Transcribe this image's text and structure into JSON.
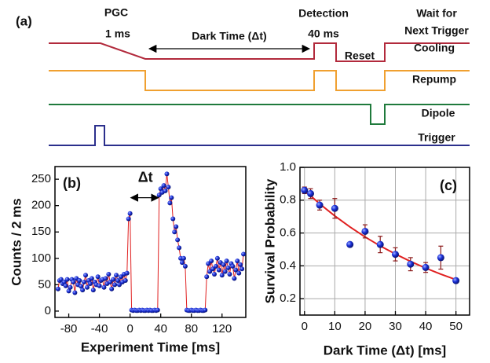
{
  "diagram": {
    "panel_label": "(a)",
    "pgc": "PGC",
    "pgc_time": "1 ms",
    "dark_time": "Dark Time (Δt)",
    "detection": "Detection",
    "detection_time": "40 ms",
    "reset": "Reset",
    "wait_1": "Wait for",
    "wait_2": "Next Trigger",
    "channels": [
      {
        "name": "Cooling",
        "color": "#b22a3c"
      },
      {
        "name": "Repump",
        "color": "#f0a030"
      },
      {
        "name": "Dipole",
        "color": "#1f7a3c"
      },
      {
        "name": "Trigger",
        "color": "#2b2f8c"
      }
    ]
  },
  "chart_data": [
    {
      "type": "line",
      "panel_label": "(b)",
      "annotation": "Δt",
      "x_label": "Experiment Time [ms]",
      "y_label": "Counts / 2 ms",
      "marker_color": "#1a2fd8",
      "line_color": "#e02020",
      "x": [
        -94,
        -92,
        -90,
        -88,
        -86,
        -84,
        -82,
        -80,
        -78,
        -76,
        -74,
        -72,
        -70,
        -68,
        -66,
        -64,
        -62,
        -60,
        -58,
        -56,
        -54,
        -52,
        -50,
        -48,
        -46,
        -44,
        -42,
        -40,
        -38,
        -36,
        -34,
        -32,
        -30,
        -28,
        -26,
        -24,
        -22,
        -20,
        -18,
        -16,
        -14,
        -12,
        -10,
        -8,
        -6,
        -4,
        -2,
        0,
        2,
        4,
        6,
        8,
        10,
        12,
        14,
        16,
        18,
        20,
        22,
        24,
        26,
        28,
        30,
        32,
        34,
        36,
        38,
        40,
        42,
        44,
        46,
        48,
        50,
        52,
        54,
        56,
        58,
        60,
        62,
        64,
        66,
        68,
        70,
        72,
        74,
        76,
        78,
        80,
        82,
        84,
        86,
        88,
        90,
        92,
        94,
        96,
        98,
        100,
        102,
        104,
        106,
        108,
        110,
        112,
        114,
        116,
        118,
        120,
        122,
        124,
        126,
        128,
        130,
        132,
        134,
        136,
        138,
        140,
        142,
        144,
        146,
        148
      ],
      "values": [
        42,
        58,
        60,
        52,
        55,
        48,
        60,
        38,
        45,
        60,
        55,
        35,
        62,
        50,
        58,
        47,
        40,
        55,
        68,
        45,
        58,
        52,
        62,
        40,
        55,
        50,
        65,
        48,
        58,
        60,
        45,
        62,
        52,
        70,
        55,
        42,
        60,
        50,
        68,
        58,
        50,
        65,
        55,
        70,
        58,
        72,
        175,
        185,
        2,
        1,
        2,
        1,
        1,
        2,
        1,
        2,
        1,
        1,
        2,
        1,
        2,
        1,
        1,
        2,
        1,
        2,
        220,
        232,
        225,
        238,
        228,
        260,
        235,
        205,
        215,
        175,
        150,
        160,
        135,
        120,
        100,
        92,
        100,
        85,
        2,
        1,
        1,
        2,
        1,
        1,
        2,
        1,
        1,
        2,
        1,
        1,
        2,
        65,
        90,
        75,
        95,
        80,
        70,
        85,
        100,
        78,
        92,
        68,
        88,
        75,
        95,
        82,
        70,
        90,
        85,
        62,
        78,
        95,
        72,
        88,
        80,
        108
      ],
      "xlim": [
        -98,
        151
      ],
      "xticks": [
        -80,
        -40,
        0,
        40,
        80,
        120
      ],
      "ylim": [
        -12,
        274
      ],
      "yticks": [
        0,
        50,
        100,
        150,
        200,
        250
      ],
      "grid": false
    },
    {
      "type": "scatter",
      "panel_label": "(c)",
      "x_label": "Dark Time (Δt) [ms]",
      "y_label": "Survival Probability",
      "marker_color": "#1a2fd8",
      "error_color": "#8b1a1a",
      "fit_color": "#e02020",
      "x": [
        0,
        2,
        5,
        10,
        15,
        20,
        25,
        30,
        35,
        40,
        45,
        50
      ],
      "values": [
        0.86,
        0.84,
        0.77,
        0.75,
        0.53,
        0.61,
        0.53,
        0.47,
        0.41,
        0.39,
        0.45,
        0.31
      ],
      "errors": [
        0.02,
        0.03,
        0.03,
        0.06,
        0.01,
        0.04,
        0.05,
        0.04,
        0.04,
        0.03,
        0.07,
        0.01
      ],
      "fit": {
        "x": [
          0,
          5,
          10,
          15,
          20,
          25,
          30,
          35,
          40,
          45,
          50
        ],
        "values": [
          0.86,
          0.778,
          0.704,
          0.637,
          0.576,
          0.521,
          0.472,
          0.427,
          0.386,
          0.349,
          0.316
        ]
      },
      "xlim": [
        -1.5,
        54.5
      ],
      "xticks": [
        0,
        10,
        20,
        30,
        40,
        50
      ],
      "ylim": [
        0.1,
        1.0
      ],
      "yticks": [
        0.2,
        0.4,
        0.6,
        0.8,
        {
          "value": 1.0,
          "label": "1.0"
        }
      ],
      "grid": true
    }
  ]
}
